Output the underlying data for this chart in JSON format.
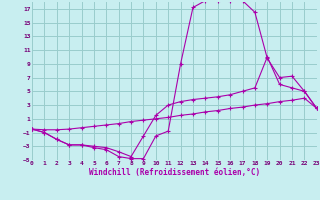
{
  "xlabel": "Windchill (Refroidissement éolien,°C)",
  "bg_color": "#c8eef0",
  "line_color": "#aa00aa",
  "grid_color": "#99cccc",
  "xlim": [
    0,
    23
  ],
  "ylim": [
    -5,
    18
  ],
  "yticks": [
    -5,
    -3,
    -1,
    1,
    3,
    5,
    7,
    9,
    11,
    13,
    15,
    17
  ],
  "xticks": [
    0,
    1,
    2,
    3,
    4,
    5,
    6,
    7,
    8,
    9,
    10,
    11,
    12,
    13,
    14,
    15,
    16,
    17,
    18,
    19,
    20,
    21,
    22,
    23
  ],
  "line1_x": [
    0,
    1,
    2,
    3,
    4,
    5,
    6,
    7,
    8,
    9,
    10,
    11,
    12,
    13,
    14,
    15,
    16,
    17,
    18,
    19,
    20,
    21,
    22,
    23
  ],
  "line1_y": [
    -0.5,
    -1.0,
    -2.0,
    -2.8,
    -2.8,
    -3.2,
    -3.5,
    -4.5,
    -4.8,
    -4.8,
    -1.5,
    -0.8,
    9.0,
    17.2,
    18.2,
    18.2,
    18.2,
    18.2,
    16.5,
    9.8,
    7.0,
    7.2,
    5.0,
    2.5
  ],
  "line2_x": [
    0,
    1,
    2,
    3,
    4,
    5,
    6,
    7,
    8,
    9,
    10,
    11,
    12,
    13,
    14,
    15,
    16,
    17,
    18,
    19,
    20,
    21,
    22,
    23
  ],
  "line2_y": [
    -0.5,
    -1.0,
    -2.0,
    -2.8,
    -2.8,
    -3.0,
    -3.2,
    -3.8,
    -4.5,
    -1.5,
    1.5,
    3.0,
    3.5,
    3.8,
    4.0,
    4.2,
    4.5,
    5.0,
    5.5,
    10.0,
    6.0,
    5.5,
    5.0,
    2.5
  ],
  "line3_x": [
    0,
    1,
    2,
    3,
    4,
    5,
    6,
    7,
    8,
    9,
    10,
    11,
    12,
    13,
    14,
    15,
    16,
    17,
    18,
    19,
    20,
    21,
    22,
    23
  ],
  "line3_y": [
    -0.5,
    -0.6,
    -0.6,
    -0.5,
    -0.3,
    -0.1,
    0.1,
    0.3,
    0.6,
    0.8,
    1.0,
    1.2,
    1.5,
    1.7,
    2.0,
    2.2,
    2.5,
    2.7,
    3.0,
    3.2,
    3.5,
    3.7,
    4.0,
    2.5
  ]
}
